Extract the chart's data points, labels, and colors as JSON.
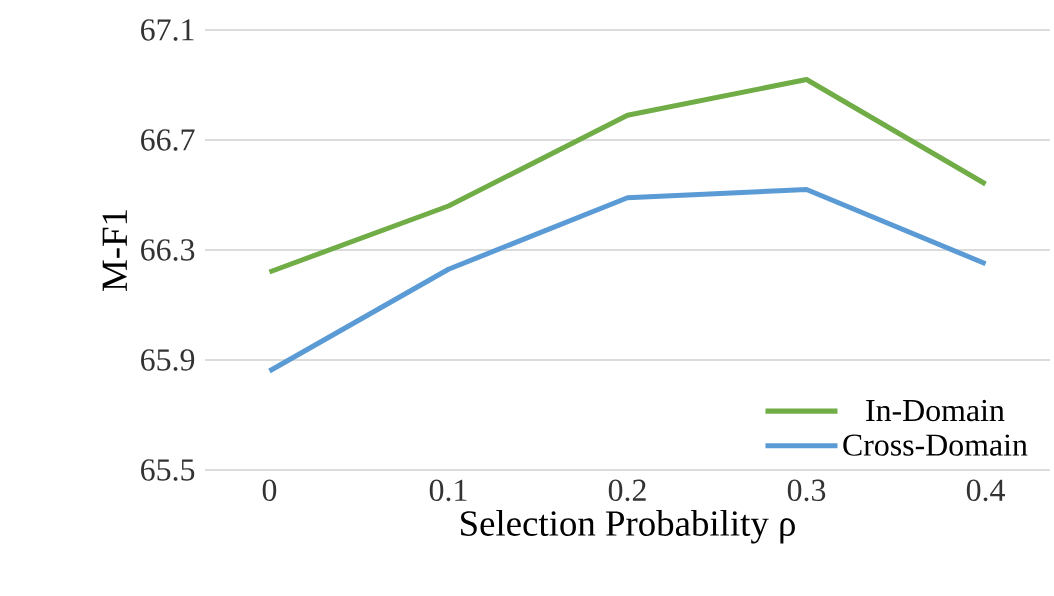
{
  "chart_data": {
    "type": "line",
    "xlabel": "Selection Probability ρ",
    "ylabel": "M-F1",
    "categories": [
      "0",
      "0.1",
      "0.2",
      "0.3",
      "0.4"
    ],
    "series": [
      {
        "name": "In-Domain",
        "color": "#70ad47",
        "values": [
          66.22,
          66.46,
          66.79,
          66.92,
          66.54
        ]
      },
      {
        "name": "Cross-Domain",
        "color": "#5b9bd5",
        "values": [
          65.86,
          66.23,
          66.49,
          66.52,
          66.25
        ]
      }
    ],
    "ylim": [
      65.5,
      67.1
    ],
    "yticks": [
      65.5,
      65.9,
      66.3,
      66.7,
      67.1
    ],
    "grid": "y",
    "legend": "bottom right",
    "marker": "none",
    "line_style": "solid"
  }
}
